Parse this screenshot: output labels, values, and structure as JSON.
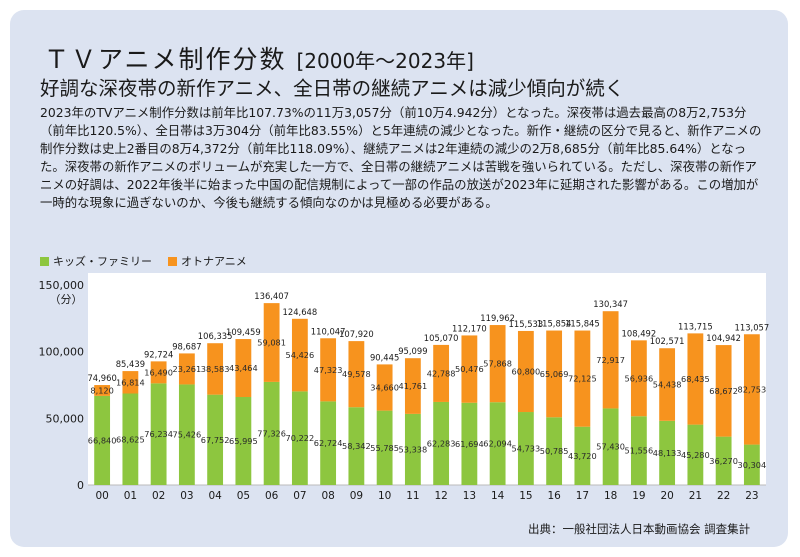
{
  "header": {
    "title": "ＴＶアニメ制作分数",
    "range": "[2000年～2023年]",
    "subtitle": "好調な深夜帯の新作アニメ、全日帯の継続アニメは減少傾向が続く",
    "description": "2023年のTVアニメ制作分数は前年比107.73%の11万3,057分（前10万4.942分）となった。深夜帯は過去最高の8万2,753分（前年比120.5%）、全日帯は3万304分（前年比83.55%）と5年連続の減少となった。新作・継続の区分で見ると、新作アニメの制作分数は史上2番目の8万4,372分（前年比118.09%）、継続アニメは2年連続の減少の2万8,685分（前年比85.64%）となった。深夜帯の新作アニメのボリュームが充実した一方で、全日帯の継続アニメは苦戦を強いられている。ただし、深夜帯の新作アニメの好調は、2022年後半に始まった中国の配信規制によって一部の作品の放送が2023年に延期された影響がある。この増加が一時的な現象に過ぎないのか、今後も継続する傾向なのかは見極める必要がある。"
  },
  "source": "出典：一般社団法人日本動画協会 調査集計",
  "chart_data": {
    "type": "bar",
    "stacked": true,
    "categories": [
      "00",
      "01",
      "02",
      "03",
      "04",
      "05",
      "06",
      "07",
      "08",
      "09",
      "10",
      "11",
      "12",
      "13",
      "14",
      "15",
      "16",
      "17",
      "18",
      "19",
      "20",
      "21",
      "22",
      "23"
    ],
    "series": [
      {
        "name": "キッズ・ファミリー",
        "color": "#8dc63f",
        "values": [
          66840,
          68625,
          76234,
          75426,
          67752,
          65995,
          77326,
          70222,
          62724,
          58342,
          55785,
          53338,
          62283,
          61694,
          62094,
          54733,
          50785,
          43720,
          57430,
          51556,
          48133,
          45280,
          36270,
          30304
        ],
        "labels": [
          "66,840",
          "68,625",
          "76,234",
          "75,426",
          "67,752",
          "65,995",
          "77,326",
          "70,222",
          "62,724",
          "58,342",
          "55,785",
          "53,338",
          "62,283",
          "61,694",
          "62,094",
          "54,733",
          "50,785",
          "43,720",
          "57,430",
          "51,556",
          "48,133",
          "45,280",
          "36,270",
          "30,304"
        ]
      },
      {
        "name": "オトナアニメ",
        "color": "#f7931e",
        "values": [
          8120,
          16814,
          16490,
          23261,
          38583,
          43464,
          59081,
          54426,
          47323,
          49578,
          34660,
          41761,
          42788,
          50476,
          57868,
          60800,
          65069,
          72125,
          72917,
          56936,
          54438,
          68435,
          68672,
          82753
        ],
        "labels": [
          "8,120",
          "16,814",
          "16,490",
          "23,261",
          "38,583",
          "43,464",
          "59,081",
          "54,426",
          "47,323",
          "49,578",
          "34,660",
          "41,761",
          "42,788",
          "50,476",
          "57,868",
          "60,800",
          "65,069",
          "72,125",
          "72,917",
          "56,936",
          "54,438",
          "68,435",
          "68,672",
          "82,753"
        ]
      }
    ],
    "totals": [
      74960,
      85439,
      92724,
      98687,
      106335,
      109459,
      136407,
      124648,
      110047,
      107920,
      90445,
      95099,
      105070,
      112170,
      119962,
      115533,
      115854,
      115845,
      130347,
      108492,
      102571,
      113715,
      104942,
      113057
    ],
    "total_labels": [
      "74,960",
      "85,439",
      "92,724",
      "98,687",
      "106,335",
      "109,459",
      "136,407",
      "124,648",
      "110,047",
      "107,920",
      "90,445",
      "95,099",
      "105,070",
      "112,170",
      "119,962",
      "115,533",
      "115,854",
      "115,845",
      "130,347",
      "108,492",
      "102,571",
      "113,715",
      "104,942",
      "113,057"
    ],
    "ylim": [
      0,
      150000
    ],
    "yticks": [
      "0",
      "50,000",
      "100,000",
      "150,000"
    ],
    "ytick_values": [
      0,
      50000,
      100000,
      150000
    ],
    "ylabel": "（分）",
    "legend_position": "top-left",
    "grid": false
  }
}
